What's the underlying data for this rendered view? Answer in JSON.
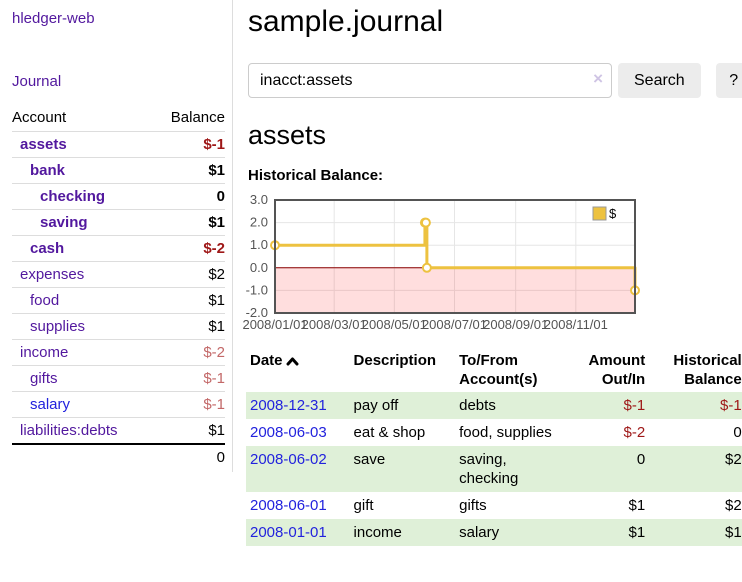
{
  "app": {
    "brand": "hledger-web"
  },
  "sidebar": {
    "journal_link": "Journal",
    "accounts": {
      "header_account": "Account",
      "header_balance": "Balance",
      "rows": [
        {
          "name": "assets",
          "balance": "$-1"
        },
        {
          "name": "bank",
          "balance": "$1"
        },
        {
          "name": "checking",
          "balance": "0"
        },
        {
          "name": "saving",
          "balance": "$1"
        },
        {
          "name": "cash",
          "balance": "$-2"
        },
        {
          "name": "expenses",
          "balance": "$2"
        },
        {
          "name": "food",
          "balance": "$1"
        },
        {
          "name": "supplies",
          "balance": "$1"
        },
        {
          "name": "income",
          "balance": "$-2"
        },
        {
          "name": "gifts",
          "balance": "$-1"
        },
        {
          "name": "salary",
          "balance": "$-1"
        },
        {
          "name": "liabilities:debts",
          "balance": "$1"
        }
      ],
      "total": "0"
    }
  },
  "main": {
    "title": "sample.journal",
    "search": {
      "value": "inacct:assets",
      "clear_icon": "×",
      "search_button": "Search",
      "help_button": "?"
    },
    "account_heading": "assets",
    "chart_title": "Historical Balance:"
  },
  "chart_data": {
    "type": "line",
    "step": true,
    "title": "Historical Balance:",
    "series": [
      {
        "name": "$",
        "color": "#edc240",
        "points": [
          {
            "date": "2008-01-01",
            "value": 1
          },
          {
            "date": "2008-06-01",
            "value": 2
          },
          {
            "date": "2008-06-02",
            "value": 2
          },
          {
            "date": "2008-06-03",
            "value": 0
          },
          {
            "date": "2008-12-31",
            "value": -1
          }
        ]
      }
    ],
    "xlim": [
      "2008-01-01",
      "2008-12-31"
    ],
    "ylim": [
      -2,
      3
    ],
    "yticks": [
      {
        "value": 3,
        "label": "3.0"
      },
      {
        "value": 2,
        "label": "2.0"
      },
      {
        "value": 1,
        "label": "1.0"
      },
      {
        "value": 0,
        "label": "0.0"
      },
      {
        "value": -1,
        "label": "-1.0"
      },
      {
        "value": -2,
        "label": "-2.0"
      }
    ],
    "xticks": [
      {
        "date": "2008-01-01",
        "label": "2008/01/01"
      },
      {
        "date": "2008-03-01",
        "label": "2008/03/01"
      },
      {
        "date": "2008-05-01",
        "label": "2008/05/01"
      },
      {
        "date": "2008-07-01",
        "label": "2008/07/01"
      },
      {
        "date": "2008-09-01",
        "label": "2008/09/01"
      },
      {
        "date": "2008-11-01",
        "label": "2008/11/01"
      }
    ],
    "legend": {
      "label": "$",
      "position": "top-right"
    },
    "colors": {
      "line": "#edc240",
      "marker_fill": "#ffffff",
      "negative_region": "rgba(255,0,0,0.13)",
      "zero_line": "#8b0000",
      "grid": "#e6e6e6",
      "border": "#545454",
      "tick_text": "#545454"
    }
  },
  "transactions": {
    "headers": {
      "date": "Date",
      "description": "Description",
      "tofrom": "To/From Account(s)",
      "amount": "Amount Out/In",
      "balance": "Historical Balance"
    },
    "rows": [
      {
        "date": "2008-12-31",
        "description": "pay off",
        "accounts": "debts",
        "amount": "$-1",
        "balance": "$-1"
      },
      {
        "date": "2008-06-03",
        "description": "eat & shop",
        "accounts": "food, supplies",
        "amount": "$-2",
        "balance": "0"
      },
      {
        "date": "2008-06-02",
        "description": "save",
        "accounts": "saving, checking",
        "amount": "0",
        "balance": "$2"
      },
      {
        "date": "2008-06-01",
        "description": "gift",
        "accounts": "gifts",
        "amount": "$1",
        "balance": "$2"
      },
      {
        "date": "2008-01-01",
        "description": "income",
        "accounts": "salary",
        "amount": "$1",
        "balance": "$1"
      }
    ]
  }
}
